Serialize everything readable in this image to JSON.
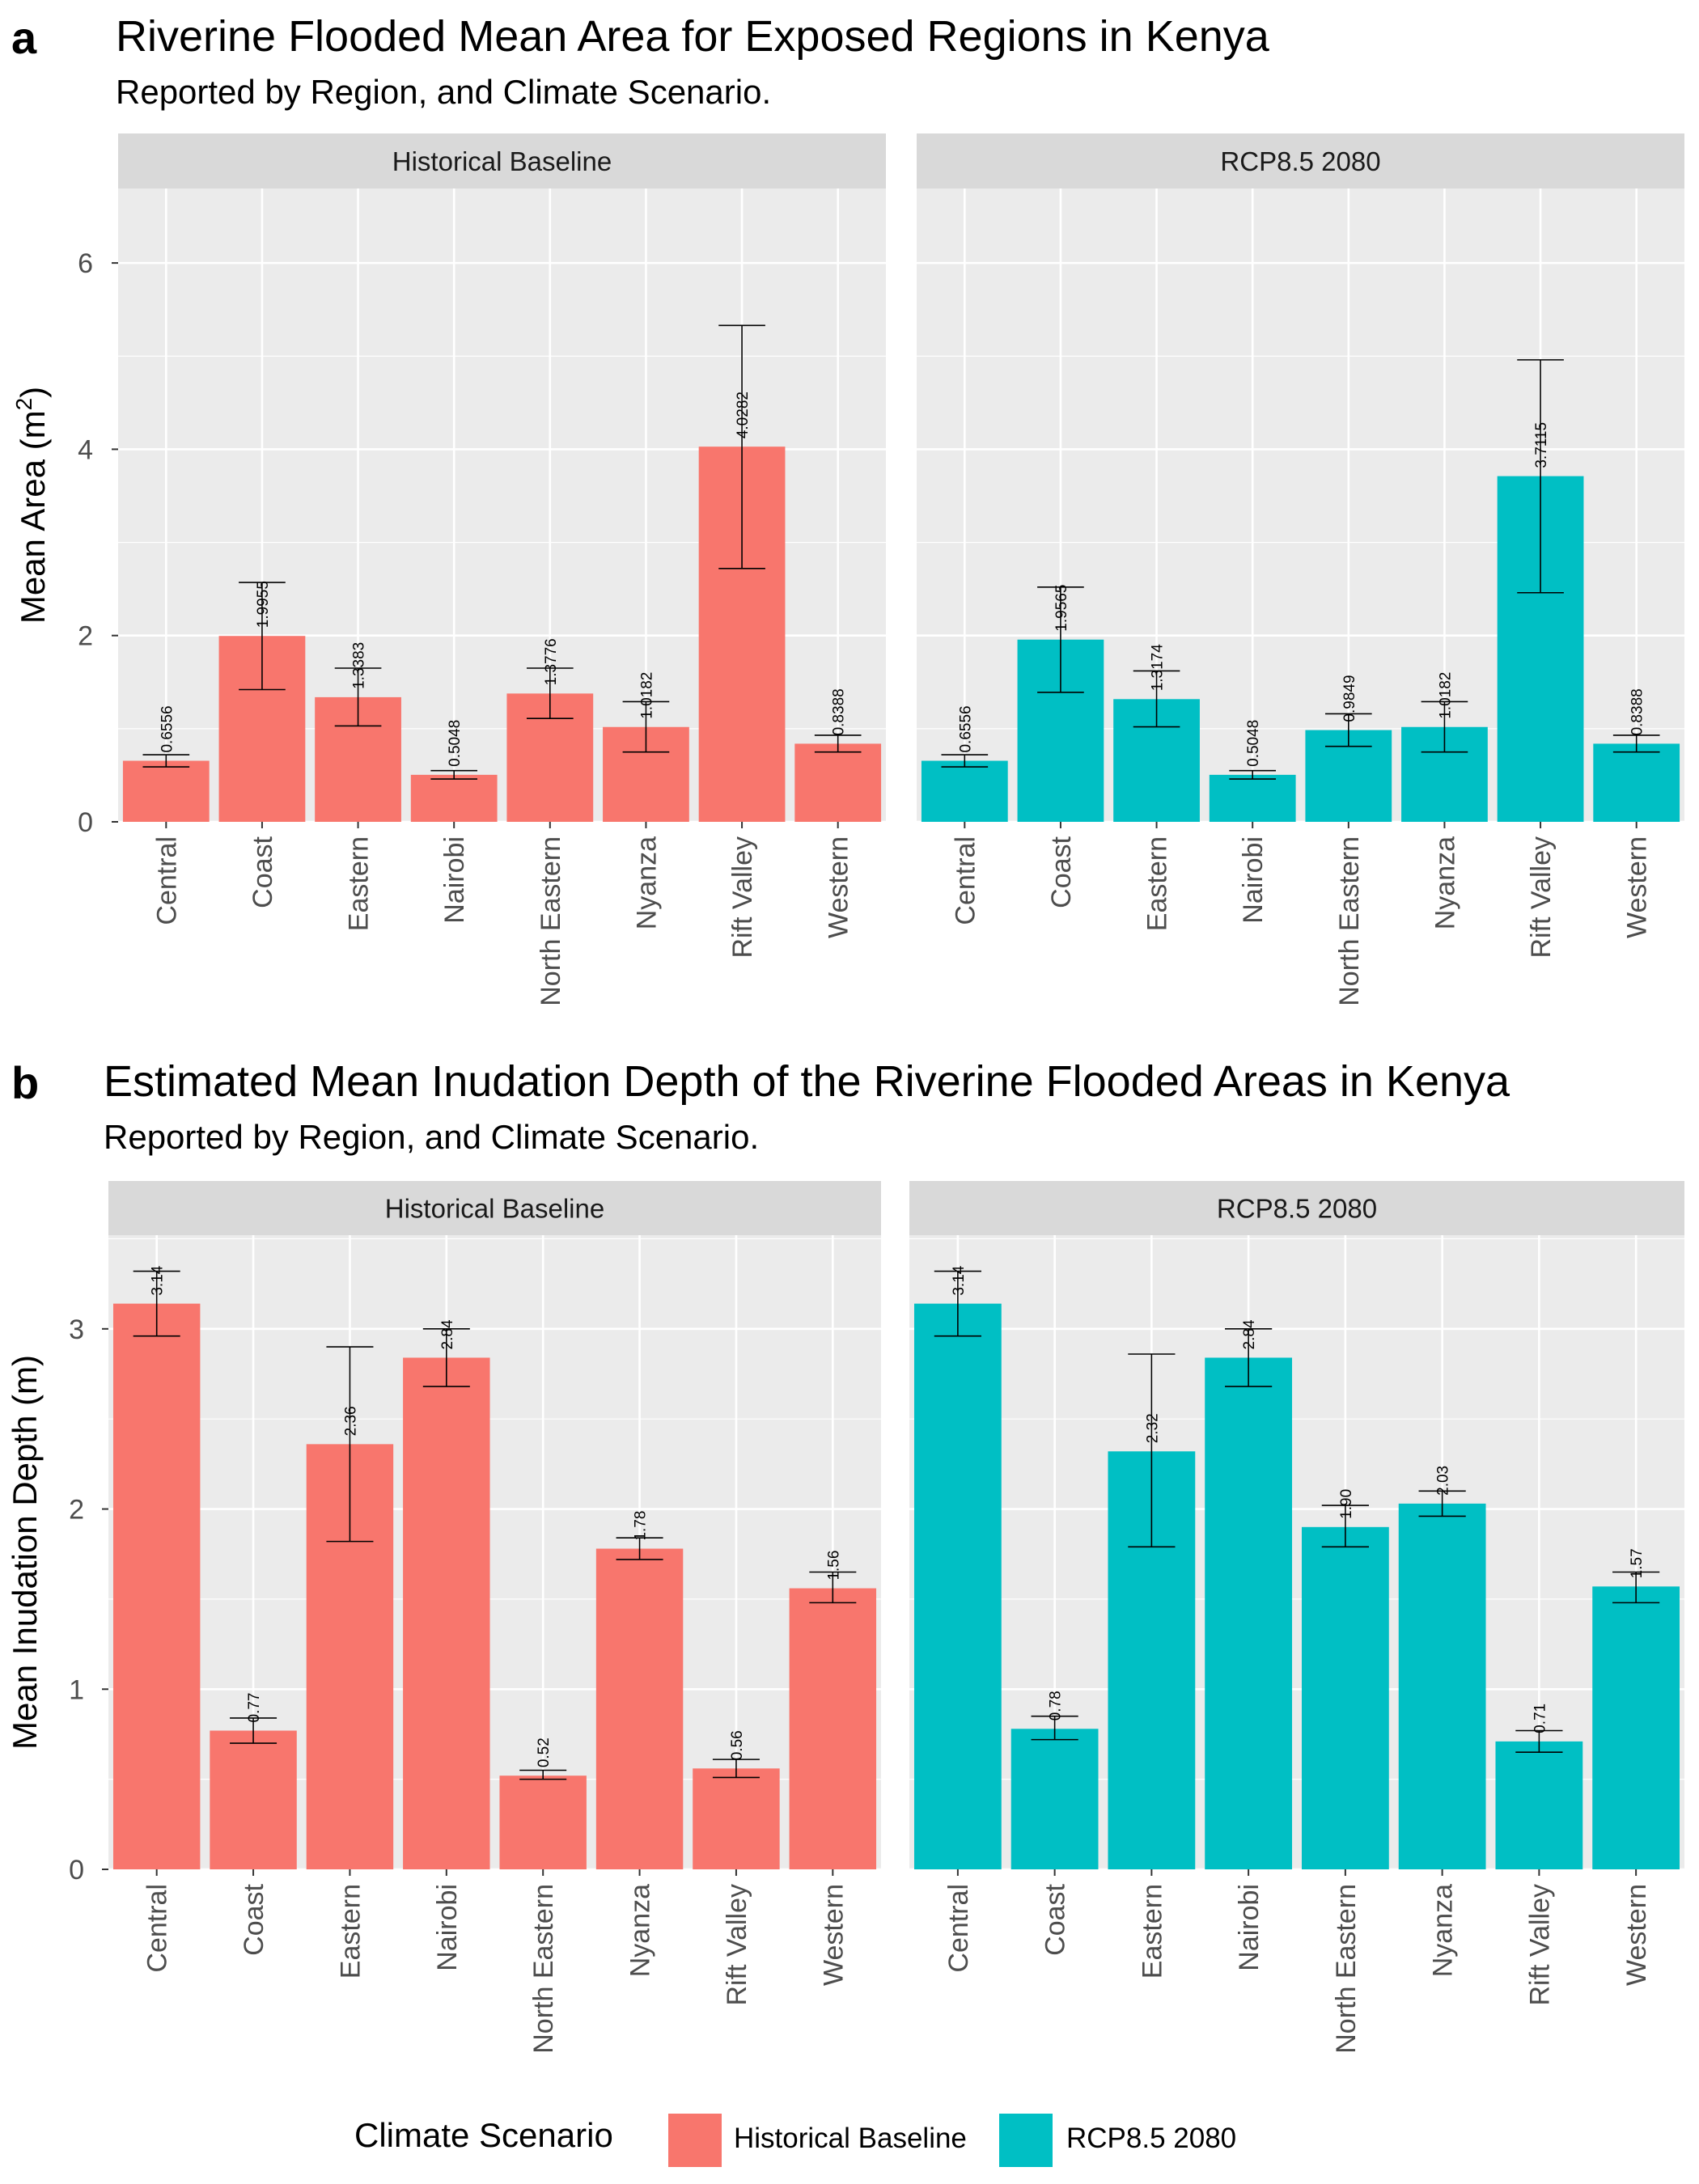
{
  "chart_data": [
    {
      "type": "bar",
      "panel_letter": "a",
      "title": "Riverine Flooded Mean Area for Exposed Regions in Kenya",
      "subtitle": "Reported by Region, and Climate Scenario.",
      "ylabel": "Mean Area (m²)",
      "ylabel_base": "Mean Area (m",
      "ylabel_sup": "2",
      "ylabel_close": ")",
      "ylim": [
        0,
        6.8
      ],
      "yticks": [
        0,
        2,
        4,
        6
      ],
      "grid": true,
      "categories": [
        "Central",
        "Coast",
        "Eastern",
        "Nairobi",
        "North Eastern",
        "Nyanza",
        "Rift Valley",
        "Western"
      ],
      "facets": [
        {
          "name": "Historical Baseline",
          "values": [
            0.6556,
            1.9955,
            1.3383,
            0.5048,
            1.3776,
            1.0182,
            4.0282,
            0.8388
          ],
          "labels": [
            "0.6556",
            "1.9955",
            "1.3383",
            "0.5048",
            "1.3776",
            "1.0182",
            "4.0282",
            "0.8388"
          ],
          "err_low": [
            0.59,
            1.42,
            1.03,
            0.46,
            1.11,
            0.75,
            2.72,
            0.75
          ],
          "err_high": [
            0.72,
            2.57,
            1.65,
            0.55,
            1.65,
            1.29,
            5.33,
            0.93
          ]
        },
        {
          "name": "RCP8.5 2080",
          "values": [
            0.6556,
            1.9565,
            1.3174,
            0.5048,
            0.9849,
            1.0182,
            3.7115,
            0.8388
          ],
          "labels": [
            "0.6556",
            "1.9565",
            "1.3174",
            "0.5048",
            "0.9849",
            "1.0182",
            "3.7115",
            "0.8388"
          ],
          "err_low": [
            0.59,
            1.39,
            1.02,
            0.46,
            0.81,
            0.75,
            2.46,
            0.75
          ],
          "err_high": [
            0.72,
            2.52,
            1.62,
            0.55,
            1.16,
            1.29,
            4.96,
            0.93
          ]
        }
      ]
    },
    {
      "type": "bar",
      "panel_letter": "b",
      "title": "Estimated Mean Inudation Depth of the Riverine Flooded Areas in Kenya",
      "subtitle": "Reported by Region, and Climate Scenario.",
      "ylabel": "Mean Inudation Depth (m)",
      "ylim": [
        0,
        3.52
      ],
      "yticks": [
        0,
        1,
        2,
        3
      ],
      "grid": true,
      "categories": [
        "Central",
        "Coast",
        "Eastern",
        "Nairobi",
        "North Eastern",
        "Nyanza",
        "Rift Valley",
        "Western"
      ],
      "facets": [
        {
          "name": "Historical Baseline",
          "values": [
            3.14,
            0.77,
            2.36,
            2.84,
            0.52,
            1.78,
            0.56,
            1.56
          ],
          "labels": [
            "3.14",
            "0.77",
            "2.36",
            "2.84",
            "0.52",
            "1.78",
            "0.56",
            "1.56"
          ],
          "err_low": [
            2.96,
            0.7,
            1.82,
            2.68,
            0.5,
            1.72,
            0.51,
            1.48
          ],
          "err_high": [
            3.32,
            0.84,
            2.9,
            3.0,
            0.55,
            1.84,
            0.61,
            1.65
          ]
        },
        {
          "name": "RCP8.5 2080",
          "values": [
            3.14,
            0.78,
            2.32,
            2.84,
            1.9,
            2.03,
            0.71,
            1.57
          ],
          "labels": [
            "3.14",
            "0.78",
            "2.32",
            "2.84",
            "1.90",
            "2.03",
            "0.71",
            "1.57"
          ],
          "err_low": [
            2.96,
            0.72,
            1.79,
            2.68,
            1.79,
            1.96,
            0.65,
            1.48
          ],
          "err_high": [
            3.32,
            0.85,
            2.86,
            3.0,
            2.02,
            2.1,
            0.77,
            1.65
          ]
        }
      ]
    }
  ],
  "legend": {
    "title": "Climate Scenario",
    "placement": "bottom",
    "items": [
      {
        "label": "Historical Baseline",
        "color": "#F8766D"
      },
      {
        "label": "RCP8.5 2080",
        "color": "#00BFC4"
      }
    ]
  },
  "colors": {
    "historical": "#F8766D",
    "rcp": "#00BFC4",
    "panel_bg": "#EBEBEB",
    "strip_bg": "#D9D9D9",
    "grid": "#FFFFFF"
  }
}
